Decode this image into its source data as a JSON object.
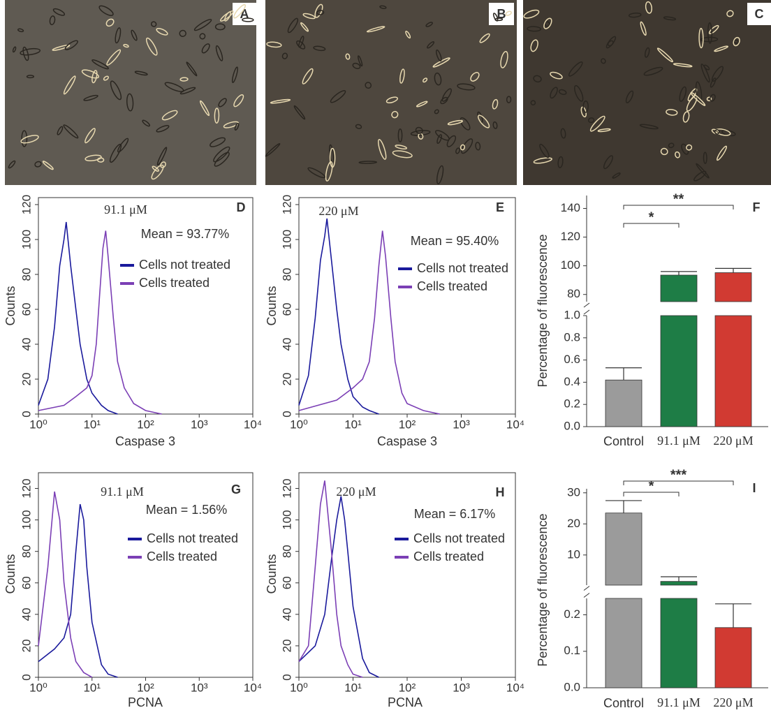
{
  "panels": [
    {
      "label": "A"
    },
    {
      "label": "B"
    },
    {
      "label": "C"
    }
  ],
  "chart_data": [
    {
      "type": "line",
      "panel_label": "D",
      "subtitle": "91.1 μM",
      "annotation": "Mean = 93.77%",
      "xlabel": "Caspase 3",
      "ylabel": "Counts",
      "xscale": "log",
      "xlim": [
        1,
        10000
      ],
      "xticks": [
        {
          "value": 1,
          "label": "10⁰"
        },
        {
          "value": 10,
          "label": "10¹"
        },
        {
          "value": 100,
          "label": "10²"
        },
        {
          "value": 1000,
          "label": "10³"
        },
        {
          "value": 10000,
          "label": "10⁴"
        }
      ],
      "ylim": [
        0,
        124
      ],
      "yticks": [
        0,
        20,
        40,
        60,
        80,
        100,
        120
      ],
      "series": [
        {
          "name": "Cells not treated",
          "color": "#1a1a9c",
          "x": [
            1,
            1.5,
            2,
            2.5,
            3,
            3.3,
            4,
            5,
            6,
            8,
            10,
            15,
            20,
            30
          ],
          "values": [
            5,
            20,
            50,
            85,
            100,
            110,
            85,
            60,
            40,
            20,
            12,
            5,
            2,
            0
          ]
        },
        {
          "name": "Cells treated",
          "color": "#7b3fb5",
          "x": [
            1,
            3,
            5,
            8,
            10,
            12,
            14,
            16,
            18,
            20,
            25,
            30,
            40,
            60,
            100,
            200
          ],
          "values": [
            2,
            5,
            10,
            15,
            22,
            40,
            70,
            95,
            105,
            90,
            55,
            30,
            15,
            6,
            2,
            0
          ]
        }
      ]
    },
    {
      "type": "line",
      "panel_label": "E",
      "subtitle": "220 μM",
      "annotation": "Mean = 95.40%",
      "xlabel": "Caspase 3",
      "ylabel": "Counts",
      "xscale": "log",
      "xlim": [
        1,
        10000
      ],
      "xticks": [
        {
          "value": 1,
          "label": "10⁰"
        },
        {
          "value": 10,
          "label": "10¹"
        },
        {
          "value": 100,
          "label": "10²"
        },
        {
          "value": 1000,
          "label": "10³"
        },
        {
          "value": 10000,
          "label": "10⁴"
        }
      ],
      "ylim": [
        0,
        124
      ],
      "yticks": [
        0,
        20,
        40,
        60,
        80,
        100,
        120
      ],
      "series": [
        {
          "name": "Cells not treated",
          "color": "#1a1a9c",
          "x": [
            1,
            1.5,
            2,
            2.5,
            3,
            3.3,
            4,
            5,
            6,
            8,
            10,
            15,
            20,
            30
          ],
          "values": [
            5,
            22,
            55,
            88,
            102,
            112,
            88,
            60,
            40,
            20,
            10,
            4,
            2,
            0
          ]
        },
        {
          "name": "Cells treated",
          "color": "#7b3fb5",
          "x": [
            1,
            5,
            10,
            15,
            20,
            25,
            30,
            35,
            40,
            50,
            60,
            80,
            100,
            200,
            400
          ],
          "values": [
            2,
            8,
            15,
            20,
            30,
            55,
            85,
            105,
            90,
            55,
            30,
            12,
            6,
            2,
            0
          ]
        }
      ]
    },
    {
      "type": "bar",
      "panel_label": "F",
      "ylabel": "Percentage of fluorescence",
      "categories": [
        "Control",
        "91.1 μM",
        "220 μM"
      ],
      "values": [
        0.42,
        93.5,
        95.2
      ],
      "errors": [
        0.11,
        2.5,
        3
      ],
      "colors": [
        "#9b9b9b",
        "#1e7d46",
        "#d13a32"
      ],
      "y_segments": [
        {
          "ylim": [
            0,
            1
          ],
          "yticks": [
            {
              "value": 0,
              "label": "0.0"
            },
            {
              "value": 0.2,
              "label": "0.2"
            },
            {
              "value": 0.4,
              "label": "0.4"
            },
            {
              "value": 0.6,
              "label": "0.6"
            },
            {
              "value": 0.8,
              "label": "0.8"
            },
            {
              "value": 1,
              "label": "1.0"
            }
          ]
        },
        {
          "ylim": [
            75,
            149
          ],
          "yticks": [
            80,
            100,
            120,
            140
          ]
        }
      ],
      "significance": [
        {
          "label": "*",
          "from": 0,
          "to": 1
        },
        {
          "label": "**",
          "from": 0,
          "to": 2
        }
      ]
    },
    {
      "type": "line",
      "panel_label": "G",
      "subtitle": "91.1 μM",
      "annotation": "Mean = 1.56%",
      "xlabel": "PCNA",
      "ylabel": "Counts",
      "xscale": "log",
      "xlim": [
        1,
        10000
      ],
      "xticks": [
        {
          "value": 1,
          "label": "10⁰"
        },
        {
          "value": 10,
          "label": "10¹"
        },
        {
          "value": 100,
          "label": "10²"
        },
        {
          "value": 1000,
          "label": "10³"
        },
        {
          "value": 10000,
          "label": "10⁴"
        }
      ],
      "ylim": [
        0,
        130
      ],
      "yticks": [
        0,
        20,
        40,
        60,
        80,
        100,
        120
      ],
      "series": [
        {
          "name": "Cells not treated",
          "color": "#1a1a9c",
          "x": [
            1,
            2,
            3,
            4,
            5,
            6,
            7,
            8,
            10,
            15,
            20,
            30
          ],
          "values": [
            10,
            18,
            25,
            40,
            80,
            110,
            100,
            70,
            35,
            8,
            2,
            0
          ]
        },
        {
          "name": "Cells treated",
          "color": "#7b3fb5",
          "x": [
            1,
            1.5,
            2,
            2.5,
            3,
            4,
            5,
            7,
            10
          ],
          "values": [
            20,
            70,
            118,
            100,
            60,
            25,
            10,
            3,
            0
          ]
        }
      ]
    },
    {
      "type": "line",
      "panel_label": "H",
      "subtitle": "220 μM",
      "annotation": "Mean = 6.17%",
      "xlabel": "PCNA",
      "ylabel": "Counts",
      "xscale": "log",
      "xlim": [
        1,
        10000
      ],
      "xticks": [
        {
          "value": 1,
          "label": "10⁰"
        },
        {
          "value": 10,
          "label": "10¹"
        },
        {
          "value": 100,
          "label": "10²"
        },
        {
          "value": 1000,
          "label": "10³"
        },
        {
          "value": 10000,
          "label": "10⁴"
        }
      ],
      "ylim": [
        0,
        130
      ],
      "yticks": [
        0,
        20,
        40,
        60,
        80,
        100,
        120
      ],
      "series": [
        {
          "name": "Cells not treated",
          "color": "#1a1a9c",
          "x": [
            1,
            2,
            3,
            4,
            5,
            6,
            7,
            8,
            10,
            15,
            20,
            30
          ],
          "values": [
            10,
            20,
            40,
            75,
            100,
            115,
            100,
            80,
            45,
            12,
            3,
            0
          ]
        },
        {
          "name": "Cells treated",
          "color": "#7b3fb5",
          "x": [
            1,
            1.5,
            2,
            2.5,
            3,
            4,
            5,
            6,
            8,
            10,
            15
          ],
          "values": [
            10,
            20,
            70,
            110,
            125,
            80,
            40,
            20,
            8,
            2,
            0
          ]
        }
      ]
    },
    {
      "type": "bar",
      "panel_label": "I",
      "ylabel": "Percentage of fluorescence",
      "categories": [
        "Control",
        "91.1 μM",
        "220 μM"
      ],
      "values": [
        23.5,
        1.5,
        0.165
      ],
      "errors": [
        4,
        1.5,
        0.065
      ],
      "colors": [
        "#9b9b9b",
        "#1e7d46",
        "#d13a32"
      ],
      "y_segments": [
        {
          "ylim": [
            0,
            0.245
          ],
          "yticks": [
            {
              "value": 0,
              "label": "0.0"
            },
            {
              "value": 0.1,
              "label": "0.1"
            },
            {
              "value": 0.2,
              "label": "0.2"
            }
          ]
        },
        {
          "ylim": [
            0.3,
            31.3
          ],
          "yticks": [
            10,
            20,
            30
          ]
        }
      ],
      "significance": [
        {
          "label": "*",
          "from": 0,
          "to": 1
        },
        {
          "label": "***",
          "from": 0,
          "to": 2
        }
      ]
    }
  ]
}
